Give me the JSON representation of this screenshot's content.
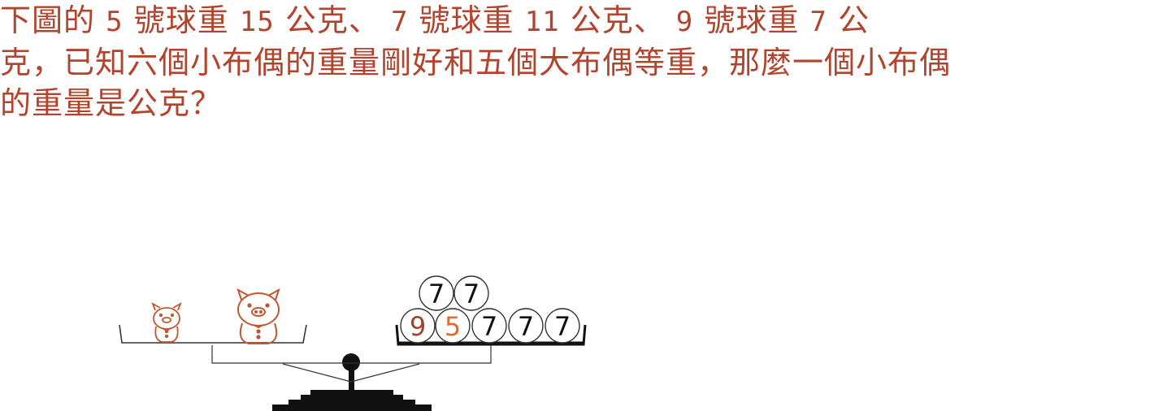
{
  "question": {
    "line1": [
      "下圖的",
      "5",
      "號球重",
      "15",
      "公克、",
      "7",
      "號球重",
      "11",
      "公克、",
      "9",
      "號球重",
      "7",
      "公"
    ],
    "line2": "克，已知六個小布偶的重量剛好和五個大布偶等重，那麼一個小布偶",
    "line3": "的重量是公克？"
  },
  "colors": {
    "text": "#b2432c",
    "ball_9": "#a1422a",
    "ball_5": "#e06c2a",
    "ball_7": "#111111",
    "pig": "#c0572f",
    "scale": "#111111"
  },
  "scale": {
    "left_pan": [
      "small-pig",
      "large-pig"
    ],
    "right_pan_bottom_row": [
      "9",
      "5",
      "7",
      "7",
      "7"
    ],
    "right_pan_top_row": [
      "7",
      "7"
    ]
  }
}
